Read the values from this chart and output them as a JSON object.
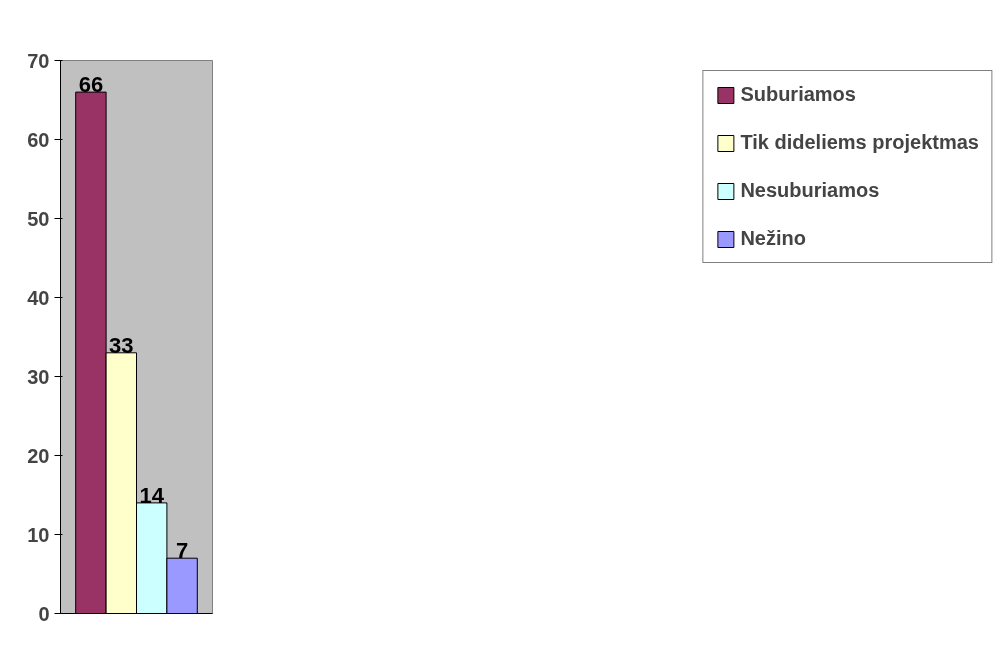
{
  "chart_data": {
    "type": "bar",
    "categories": [
      null
    ],
    "series": [
      {
        "name": "Suburiamos",
        "color": "#993366",
        "values": [
          66
        ]
      },
      {
        "name": "Tik dideliems projektmas",
        "color": "#ffffcc",
        "values": [
          33
        ]
      },
      {
        "name": "Nesuburiamos",
        "color": "#ccffff",
        "values": [
          14
        ]
      },
      {
        "name": "Nežino",
        "color": "#9999ff",
        "values": [
          7
        ]
      }
    ],
    "ylim": [
      0,
      70
    ],
    "yticks": [
      0,
      10,
      20,
      30,
      40,
      50,
      60,
      70
    ],
    "grid": false,
    "legend": "right",
    "data_labels": true
  }
}
